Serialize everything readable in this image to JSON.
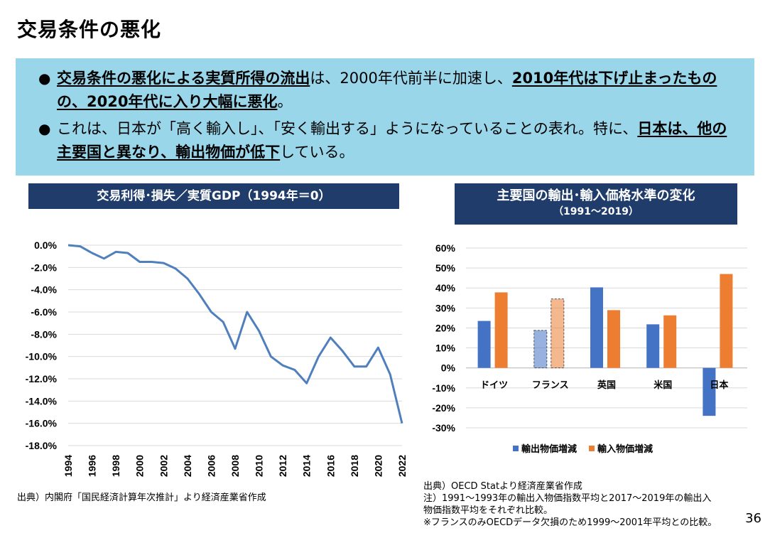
{
  "page": {
    "title": "交易条件の悪化",
    "page_number": "36"
  },
  "summary": {
    "bullet1_b1": "交易条件の悪化による実質所得の流出",
    "bullet1_t1": "は、2000年代前半に加速し、",
    "bullet1_b2": "2010年代は下げ止まったものの、2020年代に入り大幅に悪化",
    "bullet1_t2": "。",
    "bullet2_t1": "これは、日本が「高く輸入し」、「安く輸出する」ようになっていることの表れ。特に、",
    "bullet2_b1": "日本は、他の主要国と異なり、輸出物価が低下",
    "bullet2_t2": "している。"
  },
  "left_panel": {
    "header": "交易利得･損失／実質GDP（1994年＝0）",
    "source": "出典）内閣府「国民経済計算年次推計」より経済産業省作成"
  },
  "right_panel": {
    "header": "主要国の輸出･輸入価格水準の変化",
    "subheader": "（1991～2019）",
    "source_line1": "出典）OECD Statより経済産業省作成",
    "source_line2": "注）1991～1993年の輸出入物価指数平均と2017～2019年の輸出入",
    "source_line3": "物価指数平均をそれぞれ比較。",
    "source_line4": "※フランスのみOECDデータ欠損のため1999～2001年平均との比較。"
  },
  "chart_data": [
    {
      "type": "line",
      "title": "交易利得･損失／実質GDP（1994年＝0）",
      "x": [
        1994,
        1995,
        1996,
        1997,
        1998,
        1999,
        2000,
        2001,
        2002,
        2003,
        2004,
        2005,
        2006,
        2007,
        2008,
        2009,
        2010,
        2011,
        2012,
        2013,
        2014,
        2015,
        2016,
        2017,
        2018,
        2019,
        2020,
        2021,
        2022
      ],
      "series": [
        {
          "values": [
            0.0,
            -0.1,
            -0.7,
            -1.2,
            -0.6,
            -0.7,
            -1.5,
            -1.5,
            -1.6,
            -2.1,
            -3.0,
            -4.4,
            -6.0,
            -6.9,
            -9.3,
            -6.0,
            -7.7,
            -10.0,
            -10.8,
            -11.2,
            -12.4,
            -10.0,
            -8.3,
            -9.5,
            -10.9,
            -10.9,
            -9.2,
            -11.6,
            -16.0
          ],
          "color": "#4f7fbd"
        }
      ],
      "xticks": [
        "1994",
        "1996",
        "1998",
        "2000",
        "2002",
        "2004",
        "2006",
        "2008",
        "2010",
        "2012",
        "2014",
        "2016",
        "2018",
        "2020",
        "2022"
      ],
      "yticks": [
        "0.0%",
        "-2.0%",
        "-4.0%",
        "-6.0%",
        "-8.0%",
        "-10.0%",
        "-12.0%",
        "-14.0%",
        "-16.0%",
        "-18.0%"
      ],
      "ylim": [
        -18,
        0
      ],
      "grid": true
    },
    {
      "type": "bar",
      "title": "主要国の輸出･輸入価格水準の変化",
      "categories": [
        "ドイツ",
        "フランス",
        "英国",
        "米国",
        "日本"
      ],
      "series": [
        {
          "name": "輸出物価増減",
          "values": [
            23.5,
            18.8,
            40.3,
            21.8,
            -24.0
          ],
          "color": "#4472c4"
        },
        {
          "name": "輸入物価増減",
          "values": [
            37.8,
            34.5,
            28.9,
            26.3,
            47.0
          ],
          "color": "#ed7d31"
        }
      ],
      "highlight": {
        "category": "フランス",
        "style": "faded-dashed"
      },
      "yticks": [
        "60%",
        "50%",
        "40%",
        "30%",
        "20%",
        "10%",
        "0%",
        "-10%",
        "-20%",
        "-30%"
      ],
      "ylim": [
        -30,
        60
      ],
      "grid": true,
      "legend": "bottom"
    }
  ]
}
